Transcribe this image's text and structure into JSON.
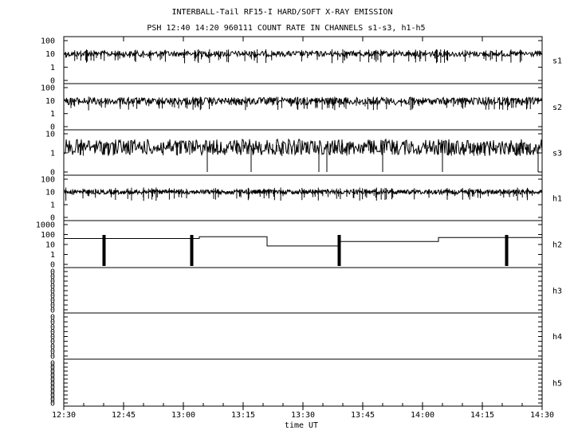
{
  "chart_data": {
    "type": "line",
    "title": "INTERBALL-Tail RF15-I HARD/SOFT X-RAY EMISSION",
    "subtitle": "PSH 12:40 14:20 960111  COUNT RATE IN CHANNELS s1-s3, h1-h5",
    "xlabel": "time UT",
    "x_ticks": [
      "12:30",
      "12:45",
      "13:00",
      "13:15",
      "13:30",
      "13:45",
      "14:00",
      "14:15",
      "14:30"
    ],
    "xlim": [
      "12:30",
      "14:30"
    ],
    "grid": false,
    "panels": [
      {
        "name": "s1",
        "yticks": [
          "100",
          "10",
          "1",
          "0"
        ],
        "level": 10,
        "spread": 0.12,
        "noise_rate": 0.8,
        "dips": []
      },
      {
        "name": "s2",
        "yticks": [
          "100",
          "10",
          "1",
          "0"
        ],
        "level": 9,
        "spread": 0.16,
        "noise_rate": 0.8,
        "dips": []
      },
      {
        "name": "s3",
        "yticks": [
          "10",
          "1",
          "0"
        ],
        "level": 2,
        "spread": 0.35,
        "noise_rate": 1.0,
        "dips": [
          "12:30",
          "13:06",
          "13:17",
          "13:34",
          "13:36",
          "13:50",
          "14:05",
          "14:29"
        ]
      },
      {
        "name": "h1",
        "yticks": [
          "100",
          "10",
          "1",
          "0"
        ],
        "level": 10,
        "spread": 0.1,
        "noise_rate": 0.6,
        "dips": []
      },
      {
        "name": "h2",
        "yticks": [
          "1000",
          "100",
          "10",
          "1",
          "0"
        ],
        "step_x": [
          "12:30",
          "12:55",
          "13:04",
          "13:21",
          "13:39",
          "14:04",
          "14:22",
          "14:30"
        ],
        "step_y": [
          40,
          40,
          60,
          7,
          20,
          50,
          50,
          60
        ],
        "bursts": [
          "12:40",
          "13:02",
          "13:39",
          "14:21"
        ]
      },
      {
        "name": "h3",
        "yticks": [
          "0",
          "0",
          "0",
          "0",
          "0",
          "0",
          "0",
          "0",
          "0"
        ]
      },
      {
        "name": "h4",
        "yticks": [
          "0",
          "0",
          "0",
          "0",
          "0",
          "0",
          "0",
          "0",
          "0"
        ]
      },
      {
        "name": "h5",
        "yticks": [
          "0",
          "0",
          "0",
          "0",
          "0",
          "0",
          "0",
          "0",
          "0",
          "0",
          "0"
        ]
      }
    ]
  }
}
